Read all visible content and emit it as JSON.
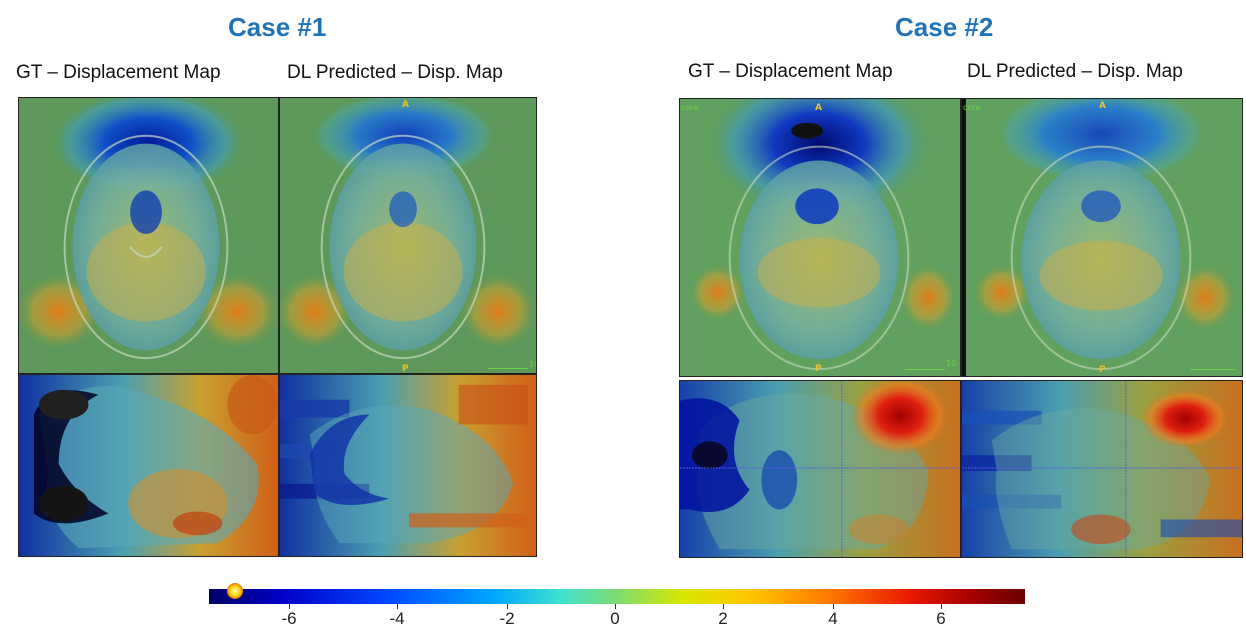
{
  "cases": [
    {
      "title": "Case #1",
      "labels": {
        "gt": "GT – Displacement Map",
        "dl": "DL Predicted – Disp. Map"
      },
      "orientation": {
        "anterior": "A",
        "posterior": "P"
      },
      "scale_text": "10"
    },
    {
      "title": "Case #2",
      "labels": {
        "gt": "GT – Displacement Map",
        "dl": "DL Predicted – Disp. Map"
      },
      "orientation": {
        "anterior": "A",
        "posterior": "P"
      },
      "scale_text": "10",
      "overlay_text": "core"
    }
  ],
  "colorbar": {
    "ticks": [
      "-6",
      "-4",
      "-2",
      "0",
      "2",
      "4",
      "6"
    ],
    "colors": [
      "#000066",
      "#0000c8",
      "#0048ff",
      "#00a8ff",
      "#40e0d0",
      "#7ddc70",
      "#d8e800",
      "#ffc800",
      "#ff7800",
      "#e81800",
      "#a00000",
      "#6a0000"
    ]
  }
}
